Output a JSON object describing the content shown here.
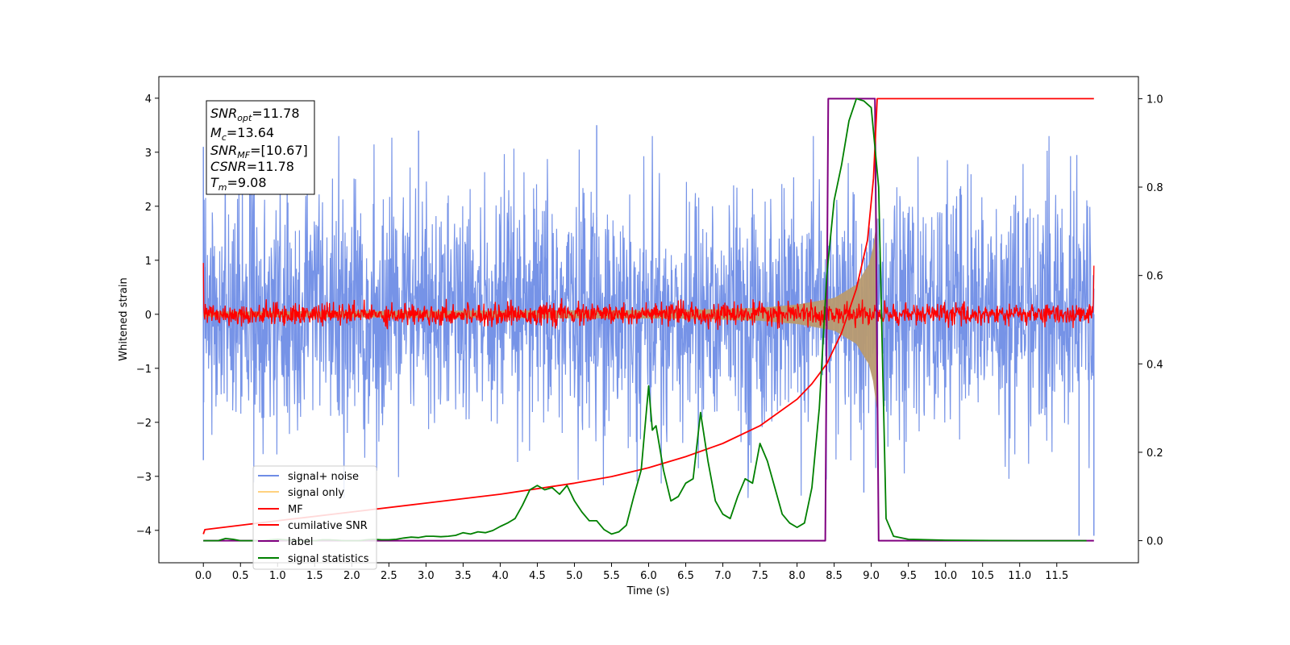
{
  "chart_data": {
    "type": "line",
    "xlabel": "Time (s)",
    "ylabel": "Whitened strain",
    "xlim": [
      -0.6,
      12.6
    ],
    "ylim": [
      -4.6,
      4.4
    ],
    "y2lim": [
      -0.05,
      1.05
    ],
    "x_tick_labels": [
      "0.0",
      "0.5",
      "1.0",
      "1.5",
      "2.0",
      "2.5",
      "3.0",
      "3.5",
      "4.0",
      "4.5",
      "5.0",
      "5.5",
      "6.0",
      "6.5",
      "7.0",
      "7.5",
      "8.0",
      "8.5",
      "9.0",
      "9.5",
      "10.0",
      "10.5",
      "11.0",
      "11.5"
    ],
    "y_tick_labels": [
      "4",
      "3",
      "2",
      "1",
      "0",
      "−1",
      "−2",
      "−3",
      "−4"
    ],
    "y2_tick_labels": [
      "1.0",
      "0.8",
      "0.6",
      "0.4",
      "0.2",
      "0.0"
    ],
    "colors": {
      "signal_noise": "#6f8de6",
      "signal_only": "#ffd27f",
      "signal_blend": "#b89a70",
      "mf": "#ff0000",
      "cumulative_snr": "#ff0000",
      "label": "#800080",
      "signal_statistics": "#008000"
    },
    "legend": {
      "placement": "lower-left",
      "entries": [
        {
          "label": "signal+ noise",
          "color": "#6f8de6"
        },
        {
          "label": "signal only",
          "color": "#ffd27f"
        },
        {
          "label": "MF",
          "color": "#ff0000"
        },
        {
          "label": "cumilative SNR",
          "color": "#ff0000"
        },
        {
          "label": "label",
          "color": "#800080"
        },
        {
          "label": "signal statistics",
          "color": "#008000"
        }
      ]
    },
    "annotation": {
      "snr_opt": {
        "main": "SNR",
        "sub": "opt",
        "value": "=11.78"
      },
      "mc": {
        "main": "M",
        "sub": "c",
        "value": "=13.64"
      },
      "snr_mf": {
        "main": "SNR",
        "sub": "MF",
        "value": "=[10.67]"
      },
      "csnr": {
        "main": "CSNR",
        "value": "=11.78"
      },
      "tm": {
        "main": "T",
        "sub": "m",
        "value": "=9.08"
      }
    },
    "series": [
      {
        "name": "signal+ noise",
        "axis": "left",
        "description": "whitened noise, approx range -3.5 to 3.5",
        "x_start": 0.0,
        "x_end": 12.0,
        "upper_envelope_typical": 2.5,
        "lower_envelope_typical": -2.5,
        "extremes": [
          [
            0.0,
            3.1
          ],
          [
            0.0,
            -2.7
          ],
          [
            2.9,
            3.4
          ],
          [
            5.3,
            3.5
          ],
          [
            8.9,
            -3.3
          ],
          [
            11.8,
            -4.1
          ],
          [
            12.0,
            -4.1
          ]
        ]
      },
      {
        "name": "signal only",
        "axis": "left",
        "description": "chirp amplitude envelope",
        "x": [
          0.0,
          6.5,
          7.5,
          8.0,
          8.5,
          8.8,
          9.0,
          9.08
        ],
        "amplitude": [
          0.05,
          0.08,
          0.12,
          0.18,
          0.3,
          0.55,
          1.0,
          1.8
        ]
      },
      {
        "name": "MF",
        "axis": "left",
        "description": "matched filter output fluctuating around 0",
        "x_start": 0.0,
        "x_end": 12.0,
        "amplitude": 0.18,
        "start_value": 0.95,
        "end_value": 0.9
      },
      {
        "name": "cumilative SNR",
        "axis": "right",
        "x": [
          0.0,
          0.02,
          1.0,
          2.0,
          3.0,
          4.0,
          5.0,
          5.5,
          6.0,
          6.5,
          7.0,
          7.5,
          8.0,
          8.2,
          8.4,
          8.6,
          8.8,
          8.95,
          9.03,
          9.08,
          12.0
        ],
        "y": [
          0.015,
          0.025,
          0.045,
          0.065,
          0.085,
          0.105,
          0.13,
          0.145,
          0.165,
          0.19,
          0.22,
          0.26,
          0.32,
          0.355,
          0.4,
          0.47,
          0.57,
          0.68,
          0.82,
          1.0,
          1.0
        ]
      },
      {
        "name": "label",
        "axis": "right",
        "x": [
          0.0,
          8.38,
          8.42,
          9.05,
          9.1,
          12.0
        ],
        "y": [
          0.0,
          0.0,
          1.0,
          1.0,
          0.0,
          0.0
        ]
      },
      {
        "name": "signal statistics",
        "axis": "right",
        "x": [
          0.0,
          0.1,
          0.2,
          0.3,
          0.4,
          0.5,
          0.6,
          0.7,
          0.8,
          0.9,
          1.0,
          1.1,
          1.2,
          1.3,
          1.4,
          1.5,
          1.6,
          1.7,
          1.8,
          1.9,
          2.0,
          2.1,
          2.2,
          2.3,
          2.4,
          2.5,
          2.6,
          2.7,
          2.8,
          2.9,
          3.0,
          3.1,
          3.2,
          3.3,
          3.4,
          3.5,
          3.6,
          3.7,
          3.8,
          3.9,
          4.0,
          4.1,
          4.2,
          4.3,
          4.4,
          4.5,
          4.6,
          4.7,
          4.8,
          4.9,
          5.0,
          5.1,
          5.2,
          5.3,
          5.4,
          5.5,
          5.6,
          5.7,
          5.8,
          5.9,
          6.0,
          6.05,
          6.1,
          6.2,
          6.3,
          6.4,
          6.5,
          6.6,
          6.7,
          6.8,
          6.9,
          7.0,
          7.1,
          7.2,
          7.3,
          7.4,
          7.5,
          7.6,
          7.7,
          7.8,
          7.9,
          8.0,
          8.1,
          8.2,
          8.3,
          8.4,
          8.5,
          8.6,
          8.7,
          8.8,
          8.9,
          9.0,
          9.1,
          9.2,
          9.3,
          9.5,
          10.0,
          11.0,
          11.9
        ],
        "y": [
          0.0,
          0.0,
          0.0,
          0.005,
          0.003,
          0.0,
          0.0,
          0.0,
          0.0,
          0.002,
          0.003,
          0.002,
          0.001,
          0.0,
          0.0,
          0.0,
          0.002,
          0.002,
          0.001,
          0.0,
          0.0,
          0.0,
          0.002,
          0.003,
          0.002,
          0.002,
          0.003,
          0.006,
          0.008,
          0.007,
          0.01,
          0.01,
          0.009,
          0.01,
          0.012,
          0.018,
          0.015,
          0.02,
          0.018,
          0.023,
          0.032,
          0.04,
          0.05,
          0.08,
          0.115,
          0.125,
          0.115,
          0.12,
          0.105,
          0.125,
          0.09,
          0.065,
          0.045,
          0.045,
          0.025,
          0.015,
          0.02,
          0.035,
          0.1,
          0.16,
          0.35,
          0.25,
          0.26,
          0.16,
          0.09,
          0.1,
          0.13,
          0.14,
          0.29,
          0.18,
          0.09,
          0.06,
          0.05,
          0.1,
          0.14,
          0.13,
          0.22,
          0.18,
          0.12,
          0.06,
          0.04,
          0.03,
          0.04,
          0.12,
          0.3,
          0.6,
          0.77,
          0.85,
          0.95,
          1.0,
          0.995,
          0.98,
          0.8,
          0.05,
          0.01,
          0.003,
          0.001,
          0.0,
          0.0
        ]
      }
    ]
  }
}
